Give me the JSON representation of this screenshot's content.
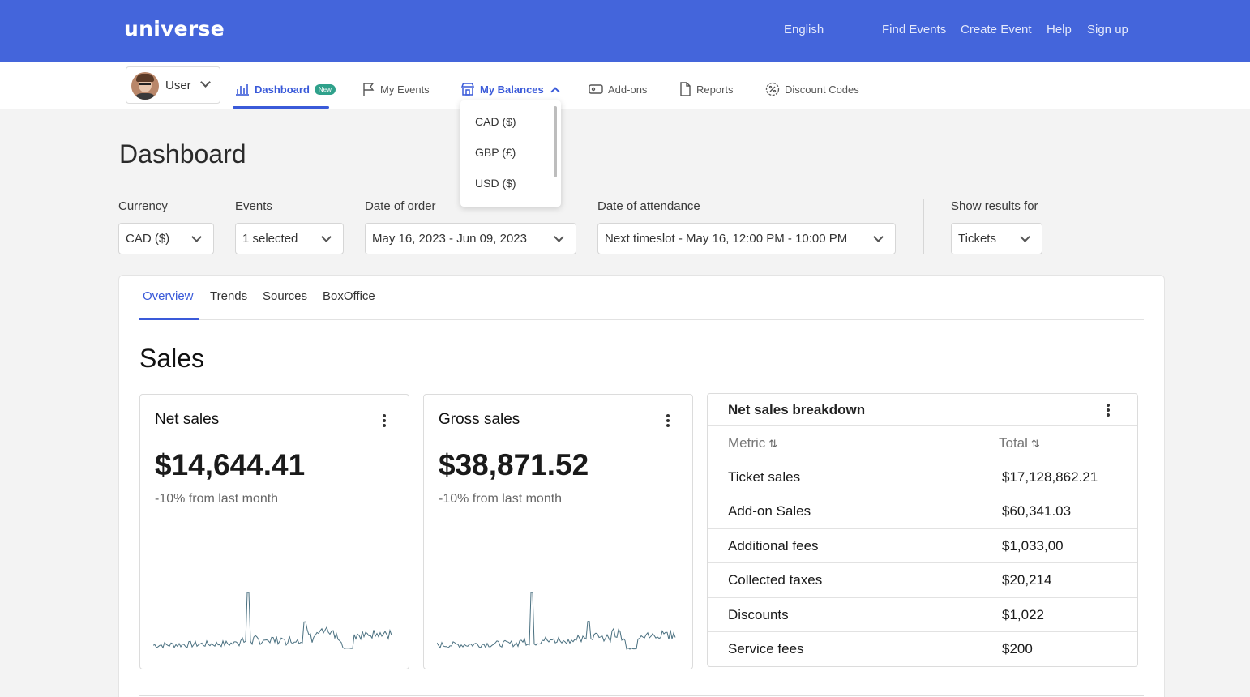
{
  "topbar": {
    "logo": "universe",
    "language": "English",
    "links": [
      "Find Events",
      "Create Event",
      "Help",
      "Sign up"
    ]
  },
  "subnav": {
    "user_label": "User",
    "tabs": [
      {
        "label": "Dashboard",
        "badge": "New"
      },
      {
        "label": "My Events"
      },
      {
        "label": "My Balances"
      },
      {
        "label": "Add-ons"
      },
      {
        "label": "Reports"
      },
      {
        "label": "Discount Codes"
      }
    ],
    "balances_menu": [
      "CAD ($)",
      "GBP (£)",
      "USD ($)"
    ]
  },
  "page": {
    "title": "Dashboard"
  },
  "filters": {
    "currency": {
      "label": "Currency",
      "value": "CAD ($)"
    },
    "events": {
      "label": "Events",
      "value": "1 selected"
    },
    "date_of_order": {
      "label": "Date of order",
      "value": "May 16, 2023 - Jun 09, 2023"
    },
    "date_of_attendance": {
      "label": "Date of attendance",
      "value": "Next timeslot - May 16, 12:00 PM - 10:00 PM"
    },
    "show_results_for": {
      "label": "Show results for",
      "value": "Tickets"
    }
  },
  "content_tabs": [
    "Overview",
    "Trends",
    "Sources",
    "BoxOffice"
  ],
  "sales": {
    "title": "Sales",
    "net": {
      "title": "Net sales",
      "amount": "$14,644.41",
      "change": "-10% from last month"
    },
    "gross": {
      "title": "Gross sales",
      "amount": "$38,871.52",
      "change": "-10% from last month"
    }
  },
  "breakdown": {
    "title": "Net sales breakdown",
    "columns": [
      "Metric",
      "Total"
    ],
    "rows": [
      {
        "metric": "Ticket sales",
        "total": "$17,128,862.21"
      },
      {
        "metric": "Add-on Sales",
        "total": "$60,341.03"
      },
      {
        "metric": "Additional fees",
        "total": "$1,033,00"
      },
      {
        "metric": "Collected taxes",
        "total": "$20,214"
      },
      {
        "metric": "Discounts",
        "total": "$1,022"
      },
      {
        "metric": "Service fees",
        "total": "$200"
      }
    ]
  },
  "colors": {
    "brand": "#4465db",
    "accent": "#3a5ad9",
    "spark": "#4a7080",
    "badge": "#2fa18b"
  }
}
